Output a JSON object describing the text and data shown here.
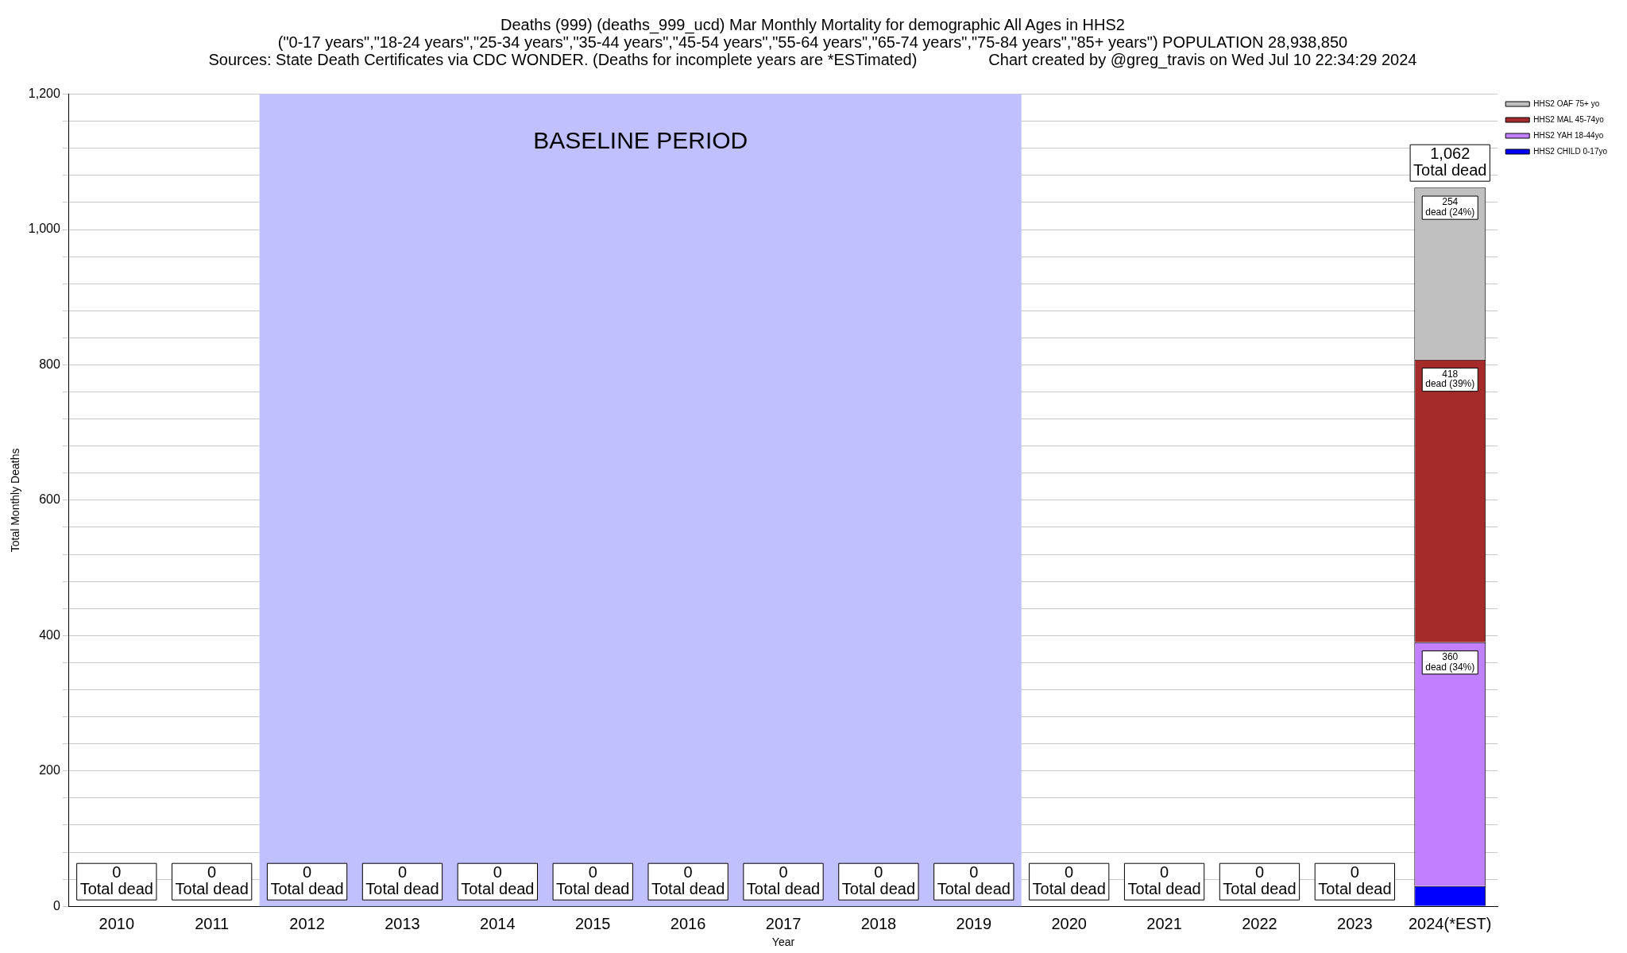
{
  "chart_data": {
    "type": "bar",
    "title": "Deaths (999) (deaths_999_ucd) Mar Monthly Mortality for demographic All Ages in HHS2",
    "subtitle": "(\"0-17 years\",\"18-24 years\",\"25-34 years\",\"35-44 years\",\"45-54 years\",\"55-64 years\",\"65-74 years\",\"75-84 years\",\"85+ years\") POPULATION 28,938,850",
    "annotations": [
      "Sources: State Death Certificates via CDC WONDER. (Deaths for incomplete years are *ESTimated)",
      "Chart created by @greg_travis on Wed Jul 10 22:34:29 2024"
    ],
    "xlabel": "Year",
    "ylabel": "Total Monthly Deaths",
    "categories": [
      "2010",
      "2011",
      "2012",
      "2013",
      "2014",
      "2015",
      "2016",
      "2017",
      "2018",
      "2019",
      "2020",
      "2021",
      "2022",
      "2023",
      "2024(*EST)"
    ],
    "stacked": true,
    "series": [
      {
        "name": "HHS2 CHILD 0-17yo",
        "color": "#0000ff",
        "values": [
          0,
          0,
          0,
          0,
          0,
          0,
          0,
          0,
          0,
          0,
          0,
          0,
          0,
          0,
          30
        ]
      },
      {
        "name": "HHS2 YAH 18-44yo",
        "color": "#c080ff",
        "values": [
          0,
          0,
          0,
          0,
          0,
          0,
          0,
          0,
          0,
          0,
          0,
          0,
          0,
          0,
          360
        ],
        "value_labels": [
          null,
          null,
          null,
          null,
          null,
          null,
          null,
          null,
          null,
          null,
          null,
          null,
          null,
          null,
          "360 dead (34%)"
        ]
      },
      {
        "name": "HHS2 MAL 45-74yo",
        "color": "#a52a2a",
        "values": [
          0,
          0,
          0,
          0,
          0,
          0,
          0,
          0,
          0,
          0,
          0,
          0,
          0,
          0,
          418
        ],
        "value_labels": [
          null,
          null,
          null,
          null,
          null,
          null,
          null,
          null,
          null,
          null,
          null,
          null,
          null,
          null,
          "418 dead (39%)"
        ]
      },
      {
        "name": "HHS2 OAF 75+ yo",
        "color": "#c0c0c0",
        "values": [
          0,
          0,
          0,
          0,
          0,
          0,
          0,
          0,
          0,
          0,
          0,
          0,
          0,
          0,
          254
        ],
        "value_labels": [
          null,
          null,
          null,
          null,
          null,
          null,
          null,
          null,
          null,
          null,
          null,
          null,
          null,
          null,
          "254 dead (24%)"
        ]
      }
    ],
    "totals": [
      "0 Total dead",
      "0 Total dead",
      "0 Total dead",
      "0 Total dead",
      "0 Total dead",
      "0 Total dead",
      "0 Total dead",
      "0 Total dead",
      "0 Total dead",
      "0 Total dead",
      "0 Total dead",
      "0 Total dead",
      "0 Total dead",
      "0 Total dead",
      "1,062 Total dead"
    ],
    "bands": [
      {
        "axis": "x",
        "from": "2012",
        "to": "2019",
        "label": "BASELINE PERIOD",
        "color": "#c0c0ff"
      }
    ],
    "ylim": [
      0,
      1200
    ],
    "yticks": [
      0,
      {
        "value": 40,
        "label": null
      },
      {
        "value": 80,
        "label": null
      },
      {
        "value": 120,
        "label": null
      },
      {
        "value": 160,
        "label": null
      },
      200,
      {
        "value": 240,
        "label": null
      },
      {
        "value": 280,
        "label": null
      },
      {
        "value": 320,
        "label": null
      },
      {
        "value": 360,
        "label": null
      },
      400,
      {
        "value": 440,
        "label": null
      },
      {
        "value": 480,
        "label": null
      },
      {
        "value": 520,
        "label": null
      },
      {
        "value": 560,
        "label": null
      },
      600,
      {
        "value": 640,
        "label": null
      },
      {
        "value": 680,
        "label": null
      },
      {
        "value": 720,
        "label": null
      },
      {
        "value": 760,
        "label": null
      },
      800,
      {
        "value": 840,
        "label": null
      },
      {
        "value": 880,
        "label": null
      },
      {
        "value": 920,
        "label": null
      },
      {
        "value": 960,
        "label": null
      },
      {
        "value": 1000,
        "label": "1,000"
      },
      {
        "value": 1040,
        "label": null
      },
      {
        "value": 1080,
        "label": null
      },
      {
        "value": 1120,
        "label": null
      },
      {
        "value": 1160,
        "label": null
      },
      {
        "value": 1200,
        "label": "1,200"
      }
    ],
    "grid": "y",
    "legend": "top right"
  }
}
